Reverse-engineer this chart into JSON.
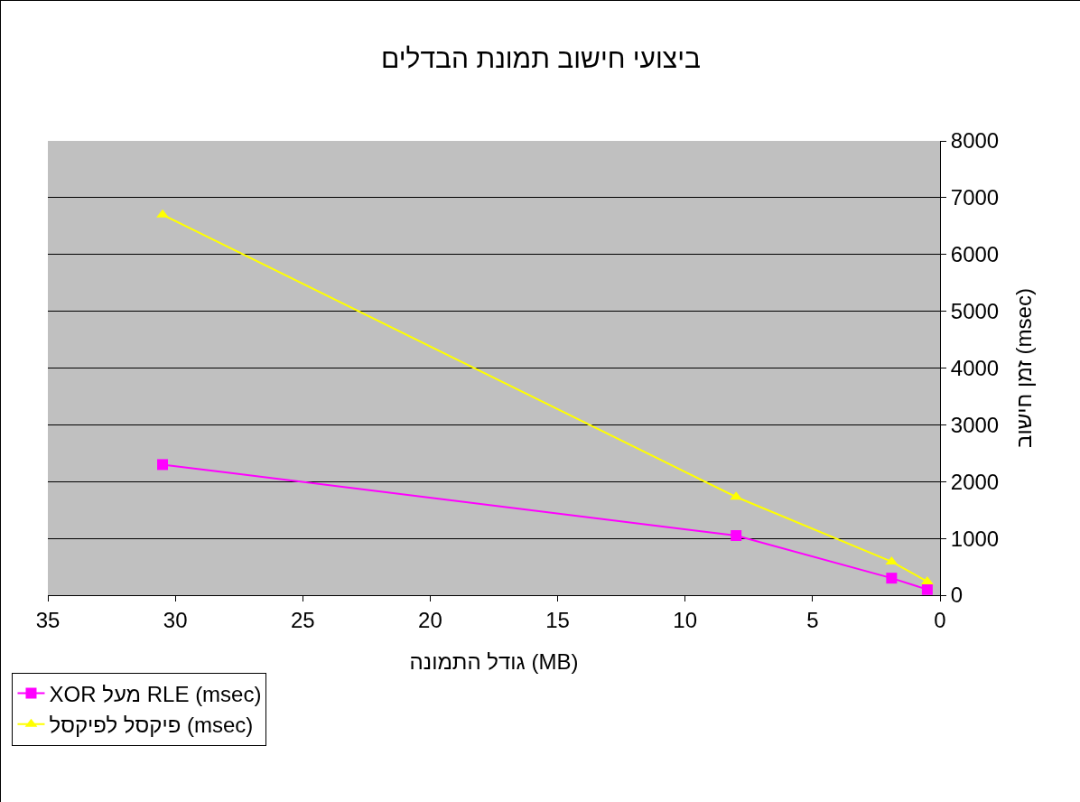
{
  "chart_data": {
    "type": "line",
    "title": "ביצועי חישוב תמונת הבדלים",
    "xlabel": "גודל התמונה (MB)",
    "ylabel": "זמן חישוב (msec)",
    "x": [
      30.5,
      8,
      1.9,
      0.5
    ],
    "series": [
      {
        "name": "XOR מעל RLE (msec)",
        "color": "#ff00ff",
        "marker": "square",
        "values": [
          2300,
          1050,
          300,
          100
        ]
      },
      {
        "name": "פיקסל לפיקסל (msec)",
        "color": "#ffff00",
        "marker": "triangle",
        "values": [
          6700,
          1730,
          590,
          240
        ]
      }
    ],
    "xlim": [
      35,
      0
    ],
    "xticks": [
      35,
      30,
      25,
      20,
      15,
      10,
      5,
      0
    ],
    "ylim": [
      0,
      8000
    ],
    "yticks": [
      0,
      1000,
      2000,
      3000,
      4000,
      5000,
      6000,
      7000,
      8000
    ],
    "grid": "y",
    "legend": "bottom left"
  }
}
